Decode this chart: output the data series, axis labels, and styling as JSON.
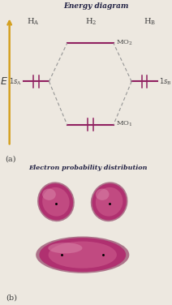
{
  "title_top": "Energy diagram",
  "title_bottom": "Electron probability distribution",
  "label_E": "E",
  "label_HA": "H_A",
  "label_HB": "H_B",
  "label_H2": "H_2",
  "label_1sA": "1s_A",
  "label_1sB": "1s_B",
  "label_MO1": "MO_1",
  "label_MO2": "MO_2",
  "label_a": "(a)",
  "label_b": "(b)",
  "background_color": "#ede8e0",
  "line_color": "#902060",
  "dashed_color": "#999999",
  "arrow_color": "#d4a020",
  "text_color": "#444444",
  "title_color": "#222244",
  "orb_color_base": "#7a1545",
  "orb_color_mid": "#b03070",
  "orb_color_bright": "#d06090",
  "orb_color_highlight": "#e090b0"
}
